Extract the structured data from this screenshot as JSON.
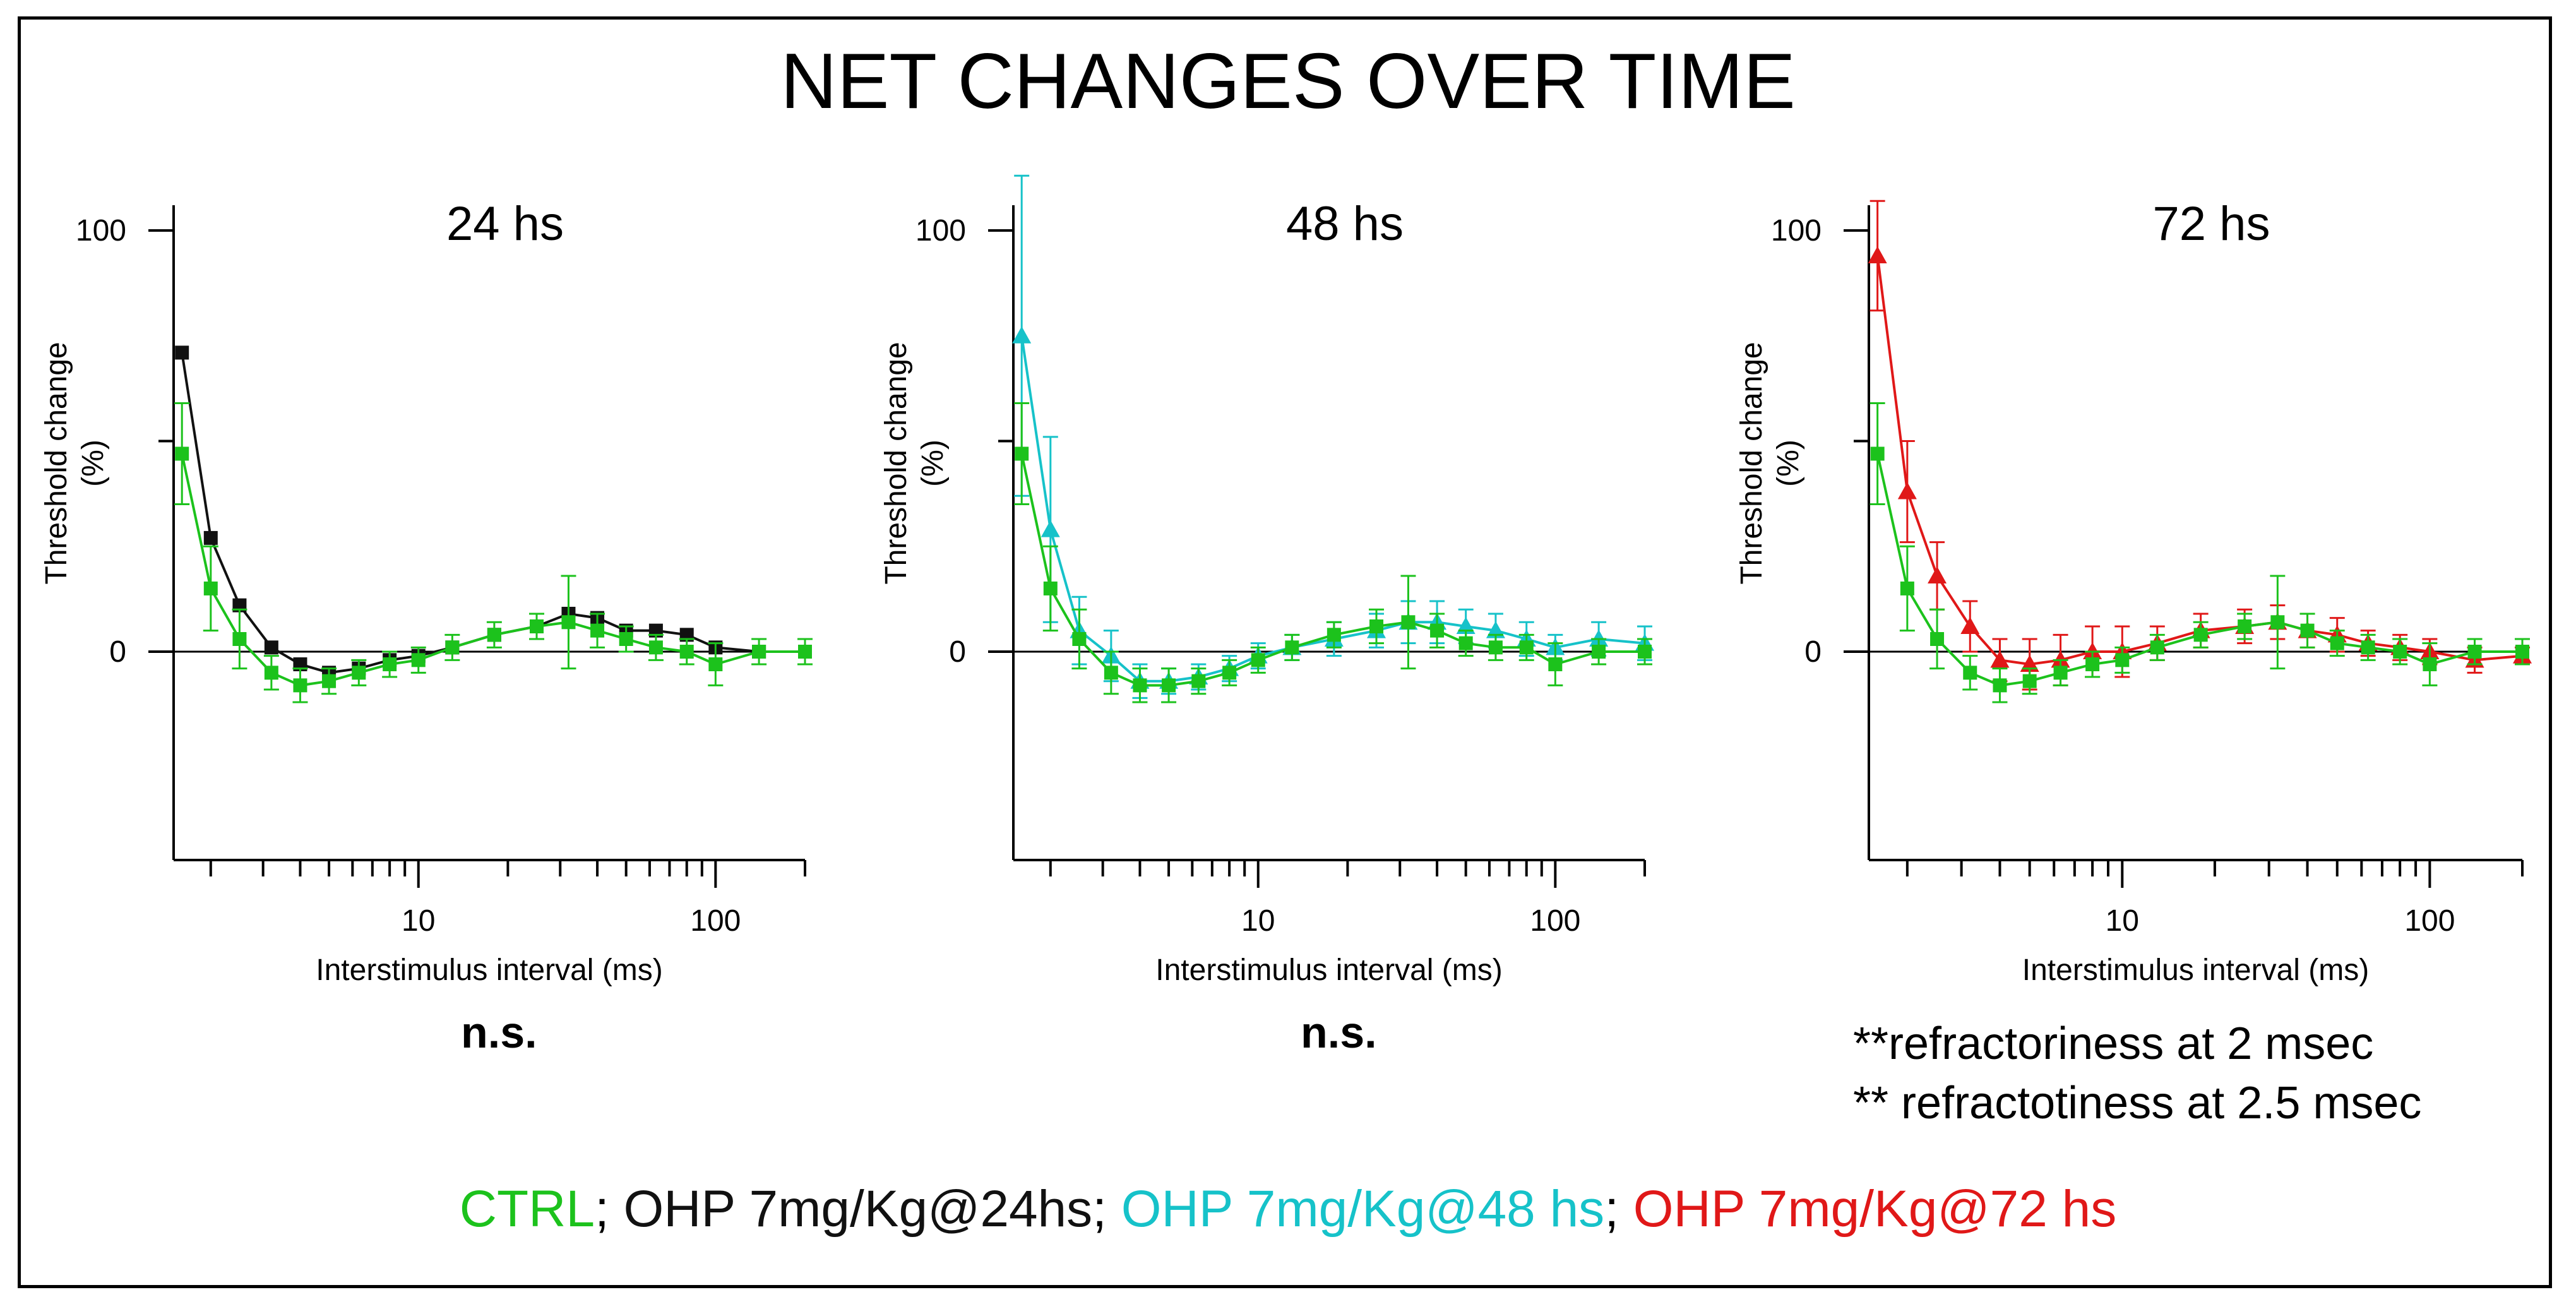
{
  "title": "NET CHANGES OVER TIME",
  "colors": {
    "ctrl": "#1cc21c",
    "h24": "#111111",
    "h48": "#16c2c9",
    "h72": "#e01818",
    "axis": "#000000"
  },
  "chart_data": [
    {
      "type": "line",
      "title": "24 hs",
      "xlabel": "Interstimulus interval (ms)",
      "ylabel": [
        "Threshold change",
        "(%)"
      ],
      "xscale": "log",
      "xlim": [
        1.5,
        200
      ],
      "ylim": [
        -50,
        105
      ],
      "xticks": [
        {
          "v": 10,
          "label": "10"
        },
        {
          "v": 100,
          "label": "100"
        }
      ],
      "yticks": [
        {
          "v": 100,
          "label": "100"
        },
        {
          "v": 0,
          "label": "0"
        }
      ],
      "x": [
        1.6,
        2,
        2.5,
        3.2,
        4,
        5,
        6.3,
        8,
        10,
        13,
        18,
        25,
        32,
        40,
        50,
        63,
        80,
        100,
        140,
        200
      ],
      "series": [
        {
          "name": "CTRL",
          "color": "#1cc21c",
          "marker": "square",
          "values": [
            47,
            15,
            3,
            -5,
            -8,
            -7,
            -5,
            -3,
            -2,
            1,
            4,
            6,
            7,
            5,
            3,
            1,
            0,
            -3,
            0,
            0
          ],
          "errors": [
            12,
            10,
            7,
            4,
            4,
            3,
            3,
            3,
            3,
            3,
            3,
            3,
            11,
            4,
            3,
            3,
            3,
            5,
            3,
            3
          ]
        },
        {
          "name": "OHP 7mg/Kg@24hs",
          "color": "#111111",
          "marker": "square",
          "values": [
            71,
            27,
            11,
            1,
            -3,
            -5,
            -4,
            -2,
            -1,
            1,
            4,
            6,
            9,
            8,
            5,
            5,
            4,
            1,
            0,
            0
          ]
        }
      ],
      "verdict": "n.s."
    },
    {
      "type": "line",
      "title": "48 hs",
      "xlabel": "Interstimulus interval (ms)",
      "ylabel": [
        "Threshold change",
        "(%)"
      ],
      "xscale": "log",
      "xlim": [
        1.5,
        200
      ],
      "ylim": [
        -50,
        105
      ],
      "xticks": [
        {
          "v": 10,
          "label": "10"
        },
        {
          "v": 100,
          "label": "100"
        }
      ],
      "yticks": [
        {
          "v": 100,
          "label": "100"
        },
        {
          "v": 0,
          "label": "0"
        }
      ],
      "x": [
        1.6,
        2,
        2.5,
        3.2,
        4,
        5,
        6.3,
        8,
        10,
        13,
        18,
        25,
        32,
        40,
        50,
        63,
        80,
        100,
        140,
        200
      ],
      "series": [
        {
          "name": "CTRL",
          "color": "#1cc21c",
          "marker": "square",
          "values": [
            47,
            15,
            3,
            -5,
            -8,
            -8,
            -7,
            -5,
            -2,
            1,
            4,
            6,
            7,
            5,
            2,
            1,
            1,
            -3,
            0,
            0
          ],
          "errors": [
            12,
            10,
            7,
            5,
            4,
            4,
            3,
            3,
            3,
            3,
            3,
            4,
            11,
            4,
            3,
            3,
            3,
            5,
            3,
            3
          ]
        },
        {
          "name": "OHP 7mg/Kg@48 hs",
          "color": "#16c2c9",
          "marker": "triangle",
          "values": [
            75,
            29,
            5,
            -1,
            -7,
            -7,
            -6,
            -4,
            -1,
            1,
            3,
            5,
            7,
            7,
            6,
            5,
            3,
            1,
            3,
            2
          ],
          "errors": [
            38,
            22,
            8,
            6,
            4,
            3,
            3,
            3,
            3,
            3,
            4,
            4,
            5,
            5,
            4,
            4,
            4,
            3,
            4,
            4
          ]
        }
      ],
      "verdict": "n.s."
    },
    {
      "type": "line",
      "title": "72 hs",
      "xlabel": "Interstimulus interval (ms)",
      "ylabel": [
        "Threshold change",
        "(%)"
      ],
      "xscale": "log",
      "xlim": [
        1.5,
        200
      ],
      "ylim": [
        -50,
        105
      ],
      "xticks": [
        {
          "v": 10,
          "label": "10"
        },
        {
          "v": 100,
          "label": "100"
        }
      ],
      "yticks": [
        {
          "v": 100,
          "label": "100"
        },
        {
          "v": 0,
          "label": "0"
        }
      ],
      "x": [
        1.6,
        2,
        2.5,
        3.2,
        4,
        5,
        6.3,
        8,
        10,
        13,
        18,
        25,
        32,
        40,
        50,
        63,
        80,
        100,
        140,
        200
      ],
      "series": [
        {
          "name": "CTRL",
          "color": "#1cc21c",
          "marker": "square",
          "values": [
            47,
            15,
            3,
            -5,
            -8,
            -7,
            -5,
            -3,
            -2,
            1,
            4,
            6,
            7,
            5,
            2,
            1,
            0,
            -3,
            0,
            0
          ],
          "errors": [
            12,
            10,
            7,
            4,
            4,
            3,
            3,
            3,
            3,
            3,
            3,
            3,
            11,
            4,
            3,
            3,
            3,
            5,
            3,
            3
          ]
        },
        {
          "name": "OHP 7mg/Kg@72 hs",
          "color": "#e01818",
          "marker": "triangle",
          "values": [
            94,
            38,
            18,
            6,
            -2,
            -3,
            -2,
            0,
            0,
            2,
            5,
            6,
            7,
            5,
            4,
            2,
            1,
            0,
            -2,
            -1
          ],
          "errors": [
            13,
            12,
            8,
            6,
            5,
            6,
            6,
            6,
            6,
            4,
            4,
            4,
            4,
            4,
            4,
            3,
            3,
            3,
            3,
            2
          ]
        }
      ],
      "annotations": [
        "**refractoriness at 2 msec",
        "** refractotiness at 2.5 msec"
      ]
    }
  ],
  "legend": {
    "ctrl": "CTRL",
    "sep1": "; ",
    "h24": "OHP 7mg/Kg@24hs",
    "sep2": "; ",
    "h48": "OHP 7mg/Kg@48 hs",
    "sep3": "; ",
    "h72": "OHP 7mg/Kg@72 hs"
  }
}
